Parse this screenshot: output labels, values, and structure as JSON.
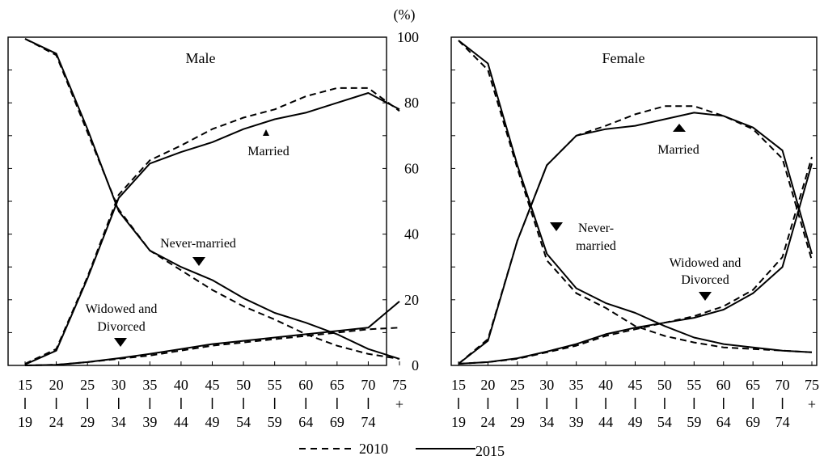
{
  "chart_data": {
    "type": "line",
    "y_unit": "(%)",
    "ylim": [
      0,
      100
    ],
    "yticks": [
      0,
      20,
      40,
      60,
      80,
      100
    ],
    "age_groups": [
      {
        "top": "15",
        "bottom": "19"
      },
      {
        "top": "20",
        "bottom": "24"
      },
      {
        "top": "25",
        "bottom": "29"
      },
      {
        "top": "30",
        "bottom": "34"
      },
      {
        "top": "35",
        "bottom": "39"
      },
      {
        "top": "40",
        "bottom": "44"
      },
      {
        "top": "45",
        "bottom": "49"
      },
      {
        "top": "50",
        "bottom": "54"
      },
      {
        "top": "55",
        "bottom": "59"
      },
      {
        "top": "60",
        "bottom": "64"
      },
      {
        "top": "65",
        "bottom": "69"
      },
      {
        "top": "70",
        "bottom": "74"
      },
      {
        "top": "75",
        "bottom": "+"
      }
    ],
    "legend": {
      "dashed": "2010",
      "solid": "2015"
    },
    "panels": [
      {
        "title": "Male",
        "series": [
          {
            "group": "Never-married",
            "year": "2010",
            "values": [
              99.5,
              94.5,
              71,
              47.5,
              35,
              29,
              23,
              18,
              14,
              9.5,
              6,
              3.5,
              2
            ]
          },
          {
            "group": "Never-married",
            "year": "2015",
            "values": [
              99.5,
              95,
              72,
              47,
              35,
              30,
              26,
              20.5,
              16,
              13,
              9.5,
              5,
              2
            ]
          },
          {
            "group": "Married",
            "year": "2010",
            "values": [
              0.5,
              5,
              27,
              52,
              62.5,
              67,
              72,
              75.5,
              78,
              82,
              84.5,
              84.5,
              77.5
            ]
          },
          {
            "group": "Married",
            "year": "2015",
            "values": [
              0.3,
              4.5,
              26.5,
              51,
              61.5,
              65,
              68,
              72,
              75,
              77,
              80,
              83,
              78
            ]
          },
          {
            "group": "Widowed and Divorced",
            "year": "2010",
            "values": [
              0,
              0.2,
              1,
              2,
              3,
              4.5,
              6,
              7,
              8,
              9,
              10,
              11,
              11.5
            ]
          },
          {
            "group": "Widowed and Divorced",
            "year": "2015",
            "values": [
              0,
              0.2,
              1,
              2.2,
              3.5,
              5,
              6.5,
              7.5,
              8.5,
              9.5,
              10.5,
              11.5,
              19.5
            ]
          }
        ],
        "annotations": [
          {
            "label": "Married",
            "marker": "up"
          },
          {
            "label": "Never-married",
            "marker": "down"
          },
          {
            "label": "Widowed and",
            "marker": "none"
          },
          {
            "label": "Divorced",
            "marker": "down"
          }
        ]
      },
      {
        "title": "Female",
        "series": [
          {
            "group": "Never-married",
            "year": "2010",
            "values": [
              99,
              90,
              60,
              32,
              22,
              17.5,
              12,
              9,
              7,
              5.5,
              5,
              4.5,
              4
            ]
          },
          {
            "group": "Never-married",
            "year": "2015",
            "values": [
              99,
              92,
              61,
              34,
              23.5,
              19,
              16,
              12,
              8.5,
              6.5,
              5.5,
              4.5,
              4
            ]
          },
          {
            "group": "Married",
            "year": "2010",
            "values": [
              0.5,
              8,
              38,
              61,
              70,
              73,
              76.5,
              79,
              79,
              76,
              72,
              63,
              32
            ]
          },
          {
            "group": "Married",
            "year": "2015",
            "values": [
              0.5,
              7.5,
              38,
              61,
              70,
              72,
              73,
              75,
              77,
              76,
              72.5,
              65.5,
              34
            ]
          },
          {
            "group": "Widowed and Divorced",
            "year": "2010",
            "values": [
              0.5,
              1,
              2,
              4,
              6,
              9,
              11,
              13,
              15,
              18,
              23,
              33,
              63.5
            ]
          },
          {
            "group": "Widowed and Divorced",
            "year": "2015",
            "values": [
              0.5,
              1,
              2.2,
              4.2,
              6.5,
              9.5,
              11.5,
              13,
              14.5,
              17,
              22,
              30,
              61.5
            ]
          }
        ],
        "annotations": [
          {
            "label": "Married",
            "marker": "up"
          },
          {
            "label": "Never-",
            "marker": "down"
          },
          {
            "label": "married",
            "marker": "none"
          },
          {
            "label": "Widowed and",
            "marker": "none"
          },
          {
            "label": "Divorced",
            "marker": "down"
          }
        ]
      }
    ]
  }
}
